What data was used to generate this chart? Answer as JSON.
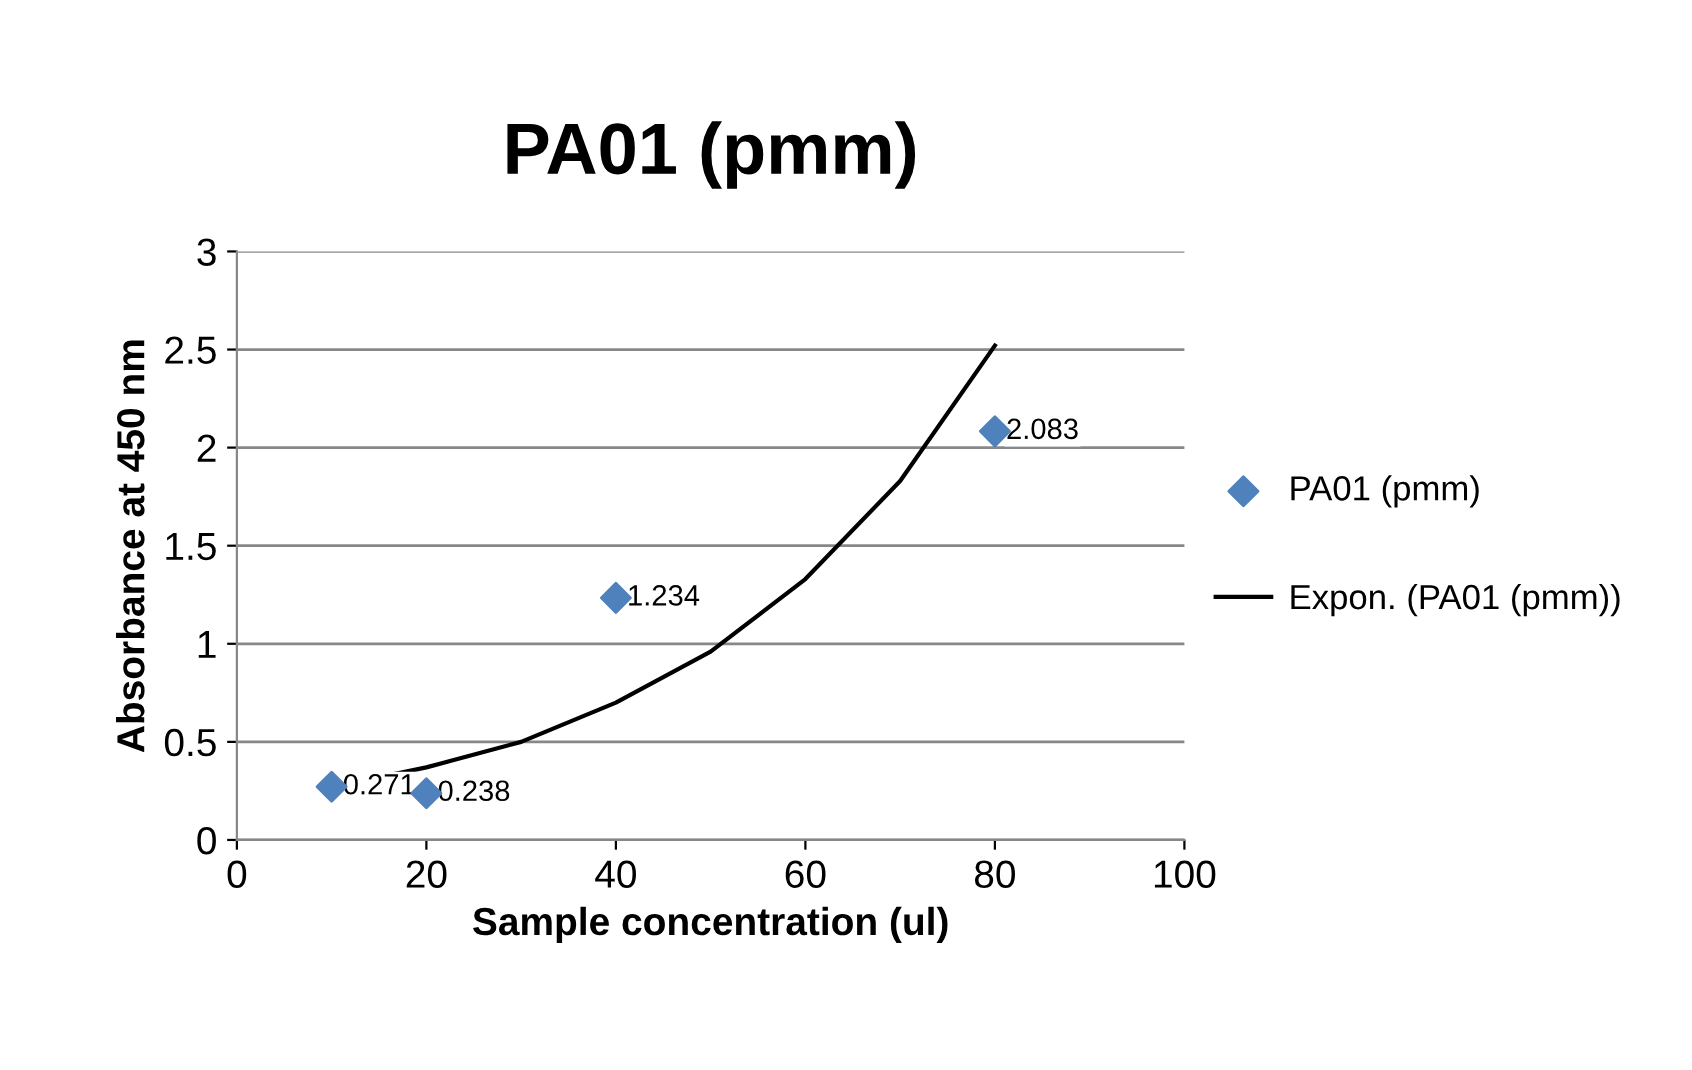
{
  "chart_data": {
    "type": "scatter",
    "title": "PA01 (pmm)",
    "xlabel": "Sample concentration (ul)",
    "ylabel": "Absorbance at 450 nm",
    "series": [
      {
        "name": "PA01 (pmm)",
        "color": "#4f81bd",
        "marker": "diamond",
        "x": [
          10,
          20,
          40,
          80
        ],
        "values": [
          0.271,
          0.238,
          1.234,
          2.083
        ],
        "data_labels": true
      },
      {
        "name": "Expon. (PA01 (pmm))",
        "type": "line",
        "color": "#000000",
        "line_style": "solid",
        "x": [
          10,
          20,
          30,
          40,
          50,
          60,
          70,
          80
        ],
        "values": [
          0.27,
          0.37,
          0.5,
          0.7,
          0.96,
          1.33,
          1.83,
          2.52
        ]
      }
    ],
    "xlim": [
      0,
      100
    ],
    "xticks": [
      0,
      20,
      40,
      60,
      80,
      100
    ],
    "ylim": [
      0,
      3
    ],
    "yticks": [
      0,
      0.5,
      1,
      1.5,
      2,
      2.5,
      3
    ],
    "grid": "y",
    "legend": "right"
  }
}
